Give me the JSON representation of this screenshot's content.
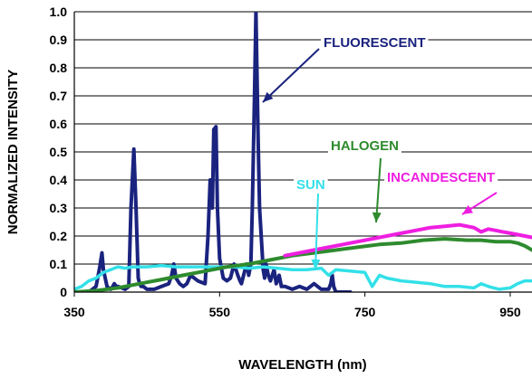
{
  "chart_data": {
    "type": "line",
    "title": "",
    "xlabel": "WAVELENGTH (nm)",
    "ylabel": "NORMALIZED INTENSITY",
    "xlim": [
      350,
      980
    ],
    "ylim": [
      0,
      1.0
    ],
    "x_ticks": [
      350,
      550,
      750,
      950
    ],
    "x_tick_labels": [
      "350",
      "550",
      "750",
      "950"
    ],
    "y_ticks": [
      0,
      0.1,
      0.2,
      0.3,
      0.4,
      0.5,
      0.6,
      0.7,
      0.8,
      0.9,
      1.0
    ],
    "y_tick_labels": [
      "0",
      "0.1",
      "0.2",
      "0.3",
      "0.4",
      "0.5",
      "0.6",
      "0.7",
      "0.8",
      "0.9",
      "1.0"
    ],
    "grid": "horizontal",
    "series": [
      {
        "name": "FLUORESCENT",
        "color": "#1a237e",
        "x": [
          350,
          370,
          380,
          385,
          388,
          390,
          395,
          400,
          403,
          405,
          408,
          410,
          420,
          425,
          428,
          432,
          435,
          438,
          440,
          442,
          445,
          450,
          460,
          470,
          480,
          484,
          487,
          490,
          495,
          500,
          505,
          510,
          520,
          530,
          534,
          537,
          540,
          542,
          545,
          547,
          550,
          555,
          560,
          565,
          570,
          575,
          578,
          580,
          583,
          587,
          589,
          590,
          593,
          595,
          598,
          600,
          603,
          605,
          610,
          612,
          614,
          617,
          620,
          625,
          628,
          632,
          635,
          640,
          650,
          660,
          670,
          680,
          690,
          700,
          703,
          705,
          707,
          710,
          715,
          720,
          730
        ],
        "y": [
          0,
          0,
          0.02,
          0.09,
          0.14,
          0.08,
          0.02,
          0.01,
          0.02,
          0.03,
          0.02,
          0.02,
          0.01,
          0.02,
          0.3,
          0.51,
          0.3,
          0.05,
          0.03,
          0.02,
          0.02,
          0.01,
          0.01,
          0.02,
          0.03,
          0.06,
          0.1,
          0.05,
          0.03,
          0.02,
          0.03,
          0.06,
          0.04,
          0.03,
          0.2,
          0.4,
          0.3,
          0.58,
          0.59,
          0.3,
          0.12,
          0.05,
          0.04,
          0.05,
          0.1,
          0.06,
          0.04,
          0.03,
          0.06,
          0.1,
          0.08,
          0.06,
          0.1,
          0.3,
          0.7,
          1.0,
          0.55,
          0.3,
          0.08,
          0.05,
          0.1,
          0.06,
          0.04,
          0.08,
          0.03,
          0.06,
          0.02,
          0.02,
          0.01,
          0.02,
          0.01,
          0.03,
          0.01,
          0.01,
          0.03,
          0.06,
          0.02,
          0,
          0,
          0,
          0
        ]
      },
      {
        "name": "SUN",
        "color": "#33e0e8",
        "x": [
          350,
          360,
          370,
          380,
          390,
          400,
          410,
          420,
          430,
          450,
          470,
          490,
          510,
          530,
          550,
          570,
          590,
          610,
          630,
          650,
          670,
          690,
          700,
          710,
          730,
          750,
          760,
          770,
          780,
          800,
          820,
          840,
          860,
          880,
          900,
          910,
          920,
          935,
          950,
          960,
          970,
          980
        ],
        "y": [
          0.01,
          0.02,
          0.04,
          0.05,
          0.07,
          0.08,
          0.09,
          0.085,
          0.09,
          0.09,
          0.095,
          0.09,
          0.09,
          0.09,
          0.09,
          0.09,
          0.085,
          0.09,
          0.085,
          0.08,
          0.08,
          0.085,
          0.06,
          0.08,
          0.075,
          0.07,
          0.02,
          0.06,
          0.05,
          0.04,
          0.035,
          0.03,
          0.02,
          0.02,
          0.015,
          0.03,
          0.02,
          0.01,
          0.015,
          0.03,
          0.04,
          0.04
        ]
      },
      {
        "name": "HALOGEN",
        "color": "#2e8b2e",
        "x": [
          350,
          380,
          410,
          440,
          470,
          500,
          530,
          560,
          590,
          620,
          650,
          680,
          710,
          740,
          770,
          800,
          830,
          860,
          890,
          910,
          930,
          950,
          960,
          970,
          980
        ],
        "y": [
          0,
          0.005,
          0.015,
          0.03,
          0.045,
          0.06,
          0.075,
          0.09,
          0.1,
          0.115,
          0.13,
          0.14,
          0.15,
          0.16,
          0.17,
          0.175,
          0.185,
          0.19,
          0.185,
          0.185,
          0.18,
          0.18,
          0.175,
          0.165,
          0.15
        ]
      },
      {
        "name": "INCANDESCENT",
        "color": "#ee1fe0",
        "x": [
          640,
          660,
          680,
          700,
          720,
          740,
          760,
          780,
          800,
          820,
          840,
          860,
          880,
          900,
          910,
          920,
          930,
          940,
          950,
          960,
          970,
          980
        ],
        "y": [
          0.13,
          0.14,
          0.15,
          0.16,
          0.17,
          0.18,
          0.19,
          0.2,
          0.21,
          0.22,
          0.23,
          0.235,
          0.24,
          0.23,
          0.215,
          0.225,
          0.22,
          0.215,
          0.21,
          0.205,
          0.2,
          0.195
        ]
      }
    ],
    "annotations": [
      {
        "text": "FLUORESCENT",
        "color": "#1a237e",
        "point_x": 595,
        "point_y": 0.71
      },
      {
        "text": "HALOGEN",
        "color": "#2e8b2e",
        "point_x": 775,
        "point_y": 0.19
      },
      {
        "text": "INCANDESCENT",
        "color": "#ee1fe0",
        "point_x": 910,
        "point_y": 0.25
      },
      {
        "text": "SUN",
        "color": "#33e0e8",
        "point_x": 700,
        "point_y": 0.08
      }
    ]
  }
}
